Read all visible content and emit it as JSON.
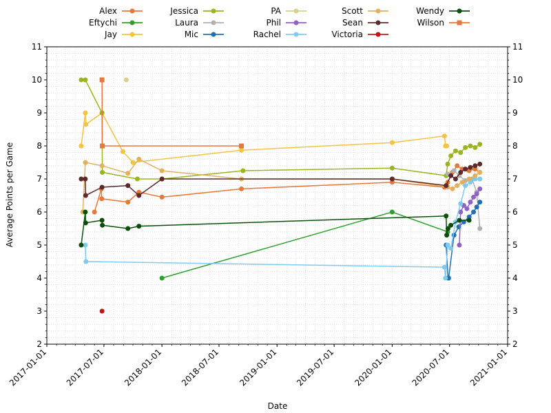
{
  "chart_data": {
    "type": "line",
    "xlabel": "Date",
    "ylabel": "Average Points per Game",
    "xlim": [
      "2017-01-01",
      "2021-01-01"
    ],
    "ylim": [
      2,
      11
    ],
    "x_ticks": [
      "2017-01-01",
      "2017-07-01",
      "2018-01-01",
      "2018-07-01",
      "2019-01-01",
      "2019-07-01",
      "2020-01-01",
      "2020-07-01",
      "2021-01-01"
    ],
    "y_ticks": [
      2,
      3,
      4,
      5,
      6,
      7,
      8,
      9,
      10,
      11
    ],
    "grid": "dotted-minor",
    "right_axis": true,
    "legend_position": "top-center",
    "series": [
      {
        "name": "Alex",
        "color": "#e8773a",
        "marker": "circle",
        "points": [
          [
            "2017-06-01",
            6.0
          ],
          [
            "2017-06-23",
            6.7
          ],
          [
            "2017-06-24",
            6.4
          ],
          [
            "2017-09-15",
            6.3
          ],
          [
            "2017-10-20",
            6.6
          ],
          [
            "2018-01-01",
            6.45
          ],
          [
            "2018-09-10",
            6.7
          ],
          [
            "2020-01-01",
            6.9
          ],
          [
            "2020-06-15",
            6.75
          ],
          [
            "2020-06-25",
            6.9
          ],
          [
            "2020-07-10",
            7.2
          ],
          [
            "2020-07-25",
            7.4
          ],
          [
            "2020-08-10",
            7.3
          ],
          [
            "2020-09-01",
            7.25
          ],
          [
            "2020-09-20",
            7.3
          ],
          [
            "2020-10-05",
            7.2
          ]
        ]
      },
      {
        "name": "Eftychi",
        "color": "#2ca02c",
        "marker": "circle",
        "points": [
          [
            "2018-01-01",
            4.0
          ],
          [
            "2020-01-01",
            6.0
          ],
          [
            "2020-06-25",
            5.4
          ]
        ]
      },
      {
        "name": "Jay",
        "color": "#f5c242",
        "marker": "circle",
        "points": [
          [
            "2017-04-20",
            8.0
          ],
          [
            "2017-05-03",
            9.0
          ],
          [
            "2017-05-05",
            8.65
          ],
          [
            "2017-06-25",
            9.0
          ],
          [
            "2017-08-30",
            7.83
          ],
          [
            "2017-10-01",
            7.5
          ],
          [
            "2018-09-10",
            7.87
          ],
          [
            "2020-01-01",
            8.1
          ],
          [
            "2020-06-15",
            8.3
          ],
          [
            "2020-06-18",
            8.0
          ],
          [
            "2020-06-22",
            8.0
          ]
        ]
      },
      {
        "name": "Jessica",
        "color": "#9ab31e",
        "marker": "circle",
        "points": [
          [
            "2017-04-20",
            10.0
          ],
          [
            "2017-05-03",
            10.0
          ],
          [
            "2017-06-25",
            9.0
          ],
          [
            "2017-06-26",
            7.2
          ],
          [
            "2017-10-15",
            7.0
          ],
          [
            "2018-01-01",
            7.0
          ],
          [
            "2018-09-15",
            7.25
          ],
          [
            "2020-01-01",
            7.33
          ],
          [
            "2020-06-20",
            7.1
          ],
          [
            "2020-06-25",
            7.45
          ],
          [
            "2020-07-05",
            7.7
          ],
          [
            "2020-07-20",
            7.85
          ],
          [
            "2020-08-05",
            7.8
          ],
          [
            "2020-08-20",
            7.95
          ],
          [
            "2020-09-05",
            8.0
          ],
          [
            "2020-09-20",
            7.95
          ],
          [
            "2020-10-05",
            8.05
          ]
        ]
      },
      {
        "name": "Laura",
        "color": "#b0b0b0",
        "marker": "circle",
        "points": [
          [
            "2020-06-25",
            7.15
          ],
          [
            "2020-07-15",
            7.25
          ],
          [
            "2020-08-01",
            7.1
          ],
          [
            "2020-08-20",
            6.95
          ],
          [
            "2020-09-10",
            7.0
          ],
          [
            "2020-09-25",
            6.6
          ],
          [
            "2020-10-05",
            5.5
          ]
        ]
      },
      {
        "name": "Mic",
        "color": "#1f6fb5",
        "marker": "circle",
        "points": [
          [
            "2020-06-20",
            5.0
          ],
          [
            "2020-06-26",
            4.0
          ],
          [
            "2020-06-28",
            4.0
          ],
          [
            "2020-07-15",
            5.3
          ],
          [
            "2020-07-30",
            5.55
          ],
          [
            "2020-08-15",
            5.7
          ],
          [
            "2020-09-01",
            5.85
          ],
          [
            "2020-09-15",
            6.0
          ],
          [
            "2020-09-25",
            6.15
          ],
          [
            "2020-10-05",
            6.3
          ]
        ]
      },
      {
        "name": "PA",
        "color": "#d8cf8a",
        "marker": "circle",
        "points": [
          [
            "2017-09-10",
            10.0
          ]
        ]
      },
      {
        "name": "Phil",
        "color": "#8e63c4",
        "marker": "circle",
        "points": [
          [
            "2020-08-01",
            5.0
          ],
          [
            "2020-08-05",
            6.0
          ],
          [
            "2020-08-15",
            6.2
          ],
          [
            "2020-08-25",
            6.1
          ],
          [
            "2020-09-05",
            6.3
          ],
          [
            "2020-09-15",
            6.45
          ],
          [
            "2020-09-25",
            6.55
          ],
          [
            "2020-10-05",
            6.7
          ]
        ]
      },
      {
        "name": "Rachel",
        "color": "#7ecbf2",
        "marker": "circle",
        "points": [
          [
            "2017-05-03",
            5.0
          ],
          [
            "2017-05-05",
            4.5
          ],
          [
            "2020-06-15",
            4.33
          ],
          [
            "2020-06-18",
            4.0
          ],
          [
            "2020-06-25",
            5.0
          ],
          [
            "2020-07-05",
            4.9
          ],
          [
            "2020-07-20",
            5.7
          ],
          [
            "2020-08-05",
            6.25
          ],
          [
            "2020-08-20",
            6.8
          ],
          [
            "2020-09-05",
            6.9
          ],
          [
            "2020-09-20",
            7.0
          ],
          [
            "2020-10-05",
            7.0
          ]
        ]
      },
      {
        "name": "Scott",
        "color": "#e3b05c",
        "marker": "circle",
        "points": [
          [
            "2017-04-25",
            6.0
          ],
          [
            "2017-05-03",
            7.5
          ],
          [
            "2017-06-25",
            7.4
          ],
          [
            "2017-09-15",
            7.17
          ],
          [
            "2017-10-20",
            7.6
          ],
          [
            "2018-01-01",
            7.25
          ],
          [
            "2018-09-10",
            7.0
          ],
          [
            "2020-01-01",
            7.0
          ],
          [
            "2020-06-25",
            6.75
          ],
          [
            "2020-07-10",
            6.7
          ],
          [
            "2020-07-25",
            6.8
          ],
          [
            "2020-08-10",
            6.9
          ],
          [
            "2020-09-01",
            7.0
          ],
          [
            "2020-09-20",
            7.1
          ],
          [
            "2020-10-05",
            7.2
          ]
        ]
      },
      {
        "name": "Sean",
        "color": "#5c2a2a",
        "marker": "circle",
        "points": [
          [
            "2017-04-20",
            7.0
          ],
          [
            "2017-05-03",
            7.0
          ],
          [
            "2017-05-04",
            6.5
          ],
          [
            "2017-06-25",
            6.75
          ],
          [
            "2017-09-15",
            6.8
          ],
          [
            "2017-10-20",
            6.5
          ],
          [
            "2018-01-01",
            7.0
          ],
          [
            "2020-01-01",
            7.0
          ],
          [
            "2020-06-20",
            6.8
          ],
          [
            "2020-07-05",
            7.1
          ],
          [
            "2020-07-20",
            7.0
          ],
          [
            "2020-08-05",
            7.2
          ],
          [
            "2020-08-20",
            7.3
          ],
          [
            "2020-09-05",
            7.35
          ],
          [
            "2020-09-20",
            7.4
          ],
          [
            "2020-10-05",
            7.45
          ]
        ]
      },
      {
        "name": "Victoria",
        "color": "#c41414",
        "marker": "circle",
        "points": [
          [
            "2017-06-25",
            3.0
          ]
        ]
      },
      {
        "name": "Wendy",
        "color": "#0b4d0b",
        "marker": "circle",
        "points": [
          [
            "2017-04-20",
            5.0
          ],
          [
            "2017-05-03",
            6.0
          ],
          [
            "2017-05-04",
            5.67
          ],
          [
            "2017-06-25",
            5.75
          ],
          [
            "2017-06-26",
            5.6
          ],
          [
            "2017-09-15",
            5.5
          ],
          [
            "2017-10-20",
            5.57
          ],
          [
            "2020-06-20",
            5.88
          ],
          [
            "2020-06-22",
            5.3
          ],
          [
            "2020-06-26",
            5.5
          ],
          [
            "2020-07-05",
            5.6
          ],
          [
            "2020-08-01",
            5.75
          ],
          [
            "2020-09-01",
            5.75
          ]
        ]
      },
      {
        "name": "Wilson",
        "color": "#e8773a",
        "marker": "square",
        "points": [
          [
            "2017-06-25",
            10.0
          ],
          [
            "2017-06-26",
            8.0
          ],
          [
            "2018-09-10",
            8.0
          ]
        ]
      }
    ]
  }
}
